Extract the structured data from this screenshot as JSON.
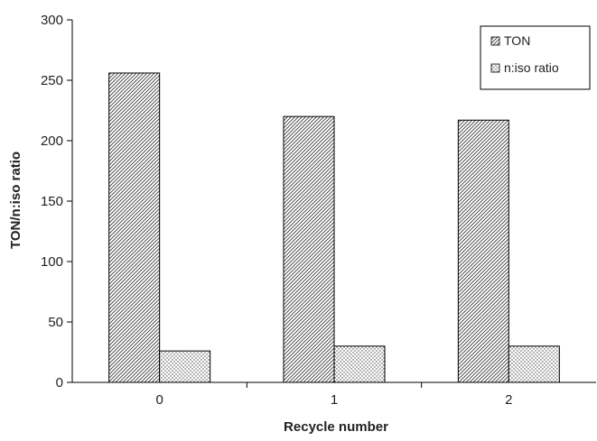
{
  "chart_data": {
    "type": "bar",
    "title": "",
    "xlabel": "Recycle number",
    "ylabel": "TON/n:iso ratio",
    "categories": [
      "0",
      "1",
      "2"
    ],
    "ylim": [
      0,
      300
    ],
    "yticks": [
      0,
      50,
      100,
      150,
      200,
      250,
      300
    ],
    "grid": false,
    "legend": "top-right",
    "series": [
      {
        "name": "TON",
        "values": [
          256,
          220,
          217
        ],
        "pattern": "diagonal-hatch"
      },
      {
        "name": "n:iso ratio",
        "values": [
          26,
          30,
          30
        ],
        "pattern": "dots"
      }
    ]
  }
}
